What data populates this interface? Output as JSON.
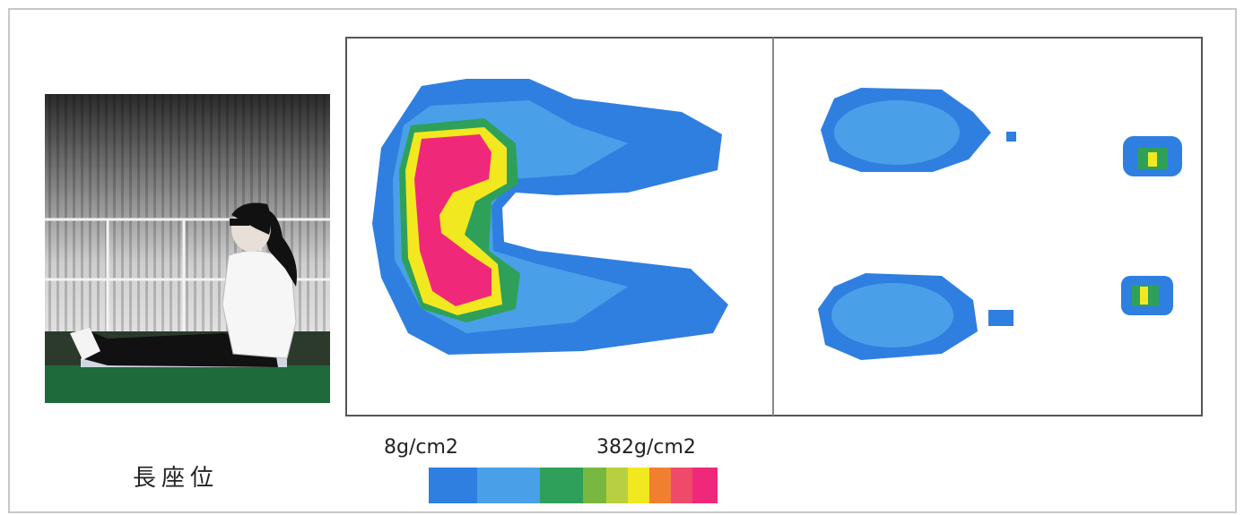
{
  "caption": "長座位",
  "scale": {
    "min_label": "8g/cm2",
    "max_label": "382g/cm2"
  }
}
